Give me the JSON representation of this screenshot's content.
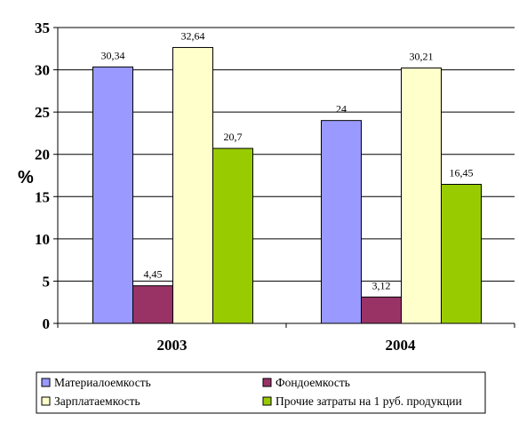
{
  "chart_data": {
    "type": "bar",
    "ylabel": "%",
    "ylim": [
      0,
      35
    ],
    "yticks": [
      0,
      5,
      10,
      15,
      20,
      25,
      30,
      35
    ],
    "categories": [
      "2003",
      "2004"
    ],
    "grid": "horizontal",
    "legend_position": "bottom",
    "series": [
      {
        "name": "Материалоемкость",
        "values": [
          30.34,
          24
        ],
        "labels": [
          "30,34",
          "24"
        ],
        "color": "#9999ff"
      },
      {
        "name": "Фондоемкость",
        "values": [
          4.45,
          3.12
        ],
        "labels": [
          "4,45",
          "3,12"
        ],
        "color": "#993366"
      },
      {
        "name": "Зарплатаемкость",
        "values": [
          32.64,
          30.21
        ],
        "labels": [
          "32,64",
          "30,21"
        ],
        "color": "#ffffcc"
      },
      {
        "name": "Прочие затраты на 1 руб. продукции",
        "values": [
          20.7,
          16.45
        ],
        "labels": [
          "20,7",
          "16,45"
        ],
        "color": "#99cc00"
      }
    ]
  }
}
